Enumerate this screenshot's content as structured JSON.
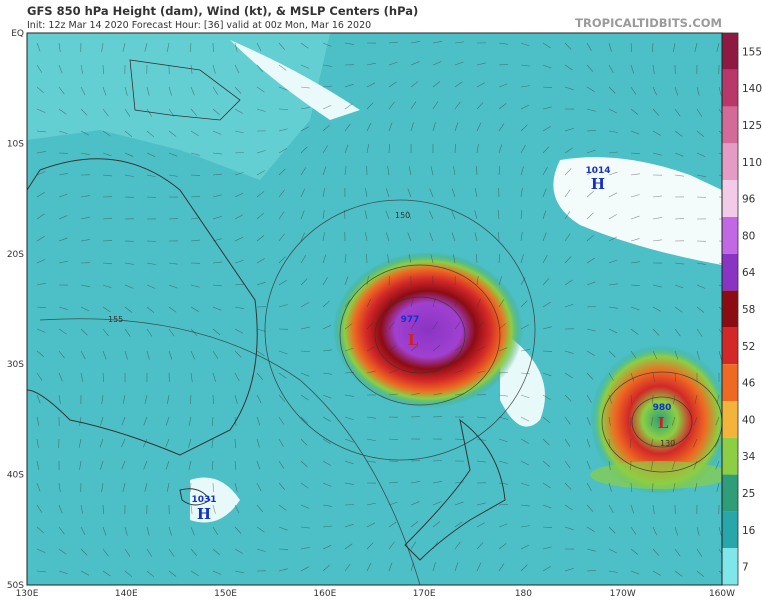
{
  "header": {
    "title": "GFS 850 hPa Height (dam), Wind (kt), & MSLP Centers (hPa)",
    "init": "Init: 12z Mar 14 2020   Forecast Hour: [36]   valid at 00z Mon, Mar 16 2020",
    "brand": "TROPICALTIDBITS.COM"
  },
  "map": {
    "lat_labels": [
      "EQ",
      "10S",
      "20S",
      "30S",
      "40S",
      "50S"
    ],
    "lon_labels": [
      "130E",
      "140E",
      "150E",
      "160E",
      "170E",
      "180",
      "170W",
      "160W"
    ],
    "centers": [
      {
        "symbol": "L",
        "pressure": 977
      },
      {
        "symbol": "L",
        "pressure": 980
      },
      {
        "symbol": "H",
        "pressure": 1014
      },
      {
        "symbol": "H",
        "pressure": 1031
      }
    ],
    "contour_labels": [
      150,
      155,
      130
    ]
  },
  "colorbar": [
    {
      "label": 155,
      "color": "#8e1942"
    },
    {
      "label": 140,
      "color": "#b8386a"
    },
    {
      "label": 125,
      "color": "#d46a98"
    },
    {
      "label": 110,
      "color": "#e49cc4"
    },
    {
      "label": 96,
      "color": "#f2cbe8"
    },
    {
      "label": 80,
      "color": "#c268e4"
    },
    {
      "label": 64,
      "color": "#8a34c4"
    },
    {
      "label": 58,
      "color": "#8c0c14"
    },
    {
      "label": 52,
      "color": "#d22828"
    },
    {
      "label": 46,
      "color": "#ee6a22"
    },
    {
      "label": 40,
      "color": "#f2b43a"
    },
    {
      "label": 34,
      "color": "#8ccf44"
    },
    {
      "label": 25,
      "color": "#2f9e78"
    },
    {
      "label": 16,
      "color": "#27a7aa"
    },
    {
      "label": 7,
      "color": "#7fe6ea"
    }
  ]
}
